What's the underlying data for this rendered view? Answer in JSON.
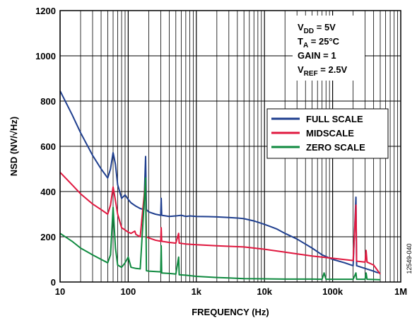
{
  "chart_data": {
    "type": "line",
    "title": "",
    "xlabel": "FREQUENCY (Hz)",
    "ylabel": "NSD (NV/√Hz)",
    "x_scale": "log",
    "xlim": [
      10,
      1000000
    ],
    "ylim": [
      0,
      1200
    ],
    "x_ticks": [
      10,
      100,
      1000,
      10000,
      100000,
      1000000
    ],
    "x_tick_labels": [
      "10",
      "100",
      "1k",
      "10k",
      "100k",
      "1M"
    ],
    "y_ticks": [
      0,
      200,
      400,
      600,
      800,
      1000,
      1200
    ],
    "y_tick_labels": [
      "0",
      "200",
      "400",
      "600",
      "800",
      "1000",
      "1200"
    ],
    "grid": true,
    "legend_position": "right-middle",
    "conditions": [
      {
        "pre": "V",
        "sub": "DD",
        "post": " = 5V"
      },
      {
        "pre": "T",
        "sub": "A",
        "post": " = 25°C"
      },
      {
        "pre": "GAIN = 1",
        "sub": "",
        "post": ""
      },
      {
        "pre": "V",
        "sub": "REF",
        "post": " = 2.5V"
      }
    ],
    "figure_code": "12549-040",
    "series": [
      {
        "name": "FULL SCALE",
        "color": "#1f3f8f",
        "points": [
          [
            10,
            845
          ],
          [
            15,
            740
          ],
          [
            20,
            660
          ],
          [
            30,
            560
          ],
          [
            40,
            500
          ],
          [
            50,
            460
          ],
          [
            55,
            500
          ],
          [
            60,
            572
          ],
          [
            65,
            520
          ],
          [
            70,
            430
          ],
          [
            80,
            370
          ],
          [
            90,
            385
          ],
          [
            100,
            365
          ],
          [
            110,
            350
          ],
          [
            130,
            335
          ],
          [
            150,
            325
          ],
          [
            170,
            320
          ],
          [
            180,
            555
          ],
          [
            185,
            320
          ],
          [
            200,
            310
          ],
          [
            250,
            300
          ],
          [
            300,
            295
          ],
          [
            305,
            370
          ],
          [
            310,
            295
          ],
          [
            400,
            290
          ],
          [
            500,
            292
          ],
          [
            600,
            295
          ],
          [
            700,
            290
          ],
          [
            800,
            292
          ],
          [
            1000,
            290
          ],
          [
            1500,
            289
          ],
          [
            2000,
            288
          ],
          [
            3000,
            285
          ],
          [
            4000,
            283
          ],
          [
            5000,
            280
          ],
          [
            7000,
            270
          ],
          [
            10000,
            255
          ],
          [
            15000,
            235
          ],
          [
            20000,
            215
          ],
          [
            30000,
            190
          ],
          [
            50000,
            150
          ],
          [
            70000,
            120
          ],
          [
            100000,
            100
          ],
          [
            150000,
            85
          ],
          [
            200000,
            72
          ],
          [
            220000,
            375
          ],
          [
            225000,
            72
          ],
          [
            300000,
            60
          ],
          [
            400000,
            48
          ],
          [
            450000,
            42
          ],
          [
            500000,
            40
          ]
        ]
      },
      {
        "name": "MIDSCALE",
        "color": "#e0183f",
        "points": [
          [
            10,
            485
          ],
          [
            15,
            430
          ],
          [
            20,
            390
          ],
          [
            30,
            345
          ],
          [
            40,
            320
          ],
          [
            50,
            300
          ],
          [
            55,
            340
          ],
          [
            60,
            420
          ],
          [
            65,
            360
          ],
          [
            70,
            300
          ],
          [
            80,
            240
          ],
          [
            90,
            230
          ],
          [
            100,
            220
          ],
          [
            110,
            215
          ],
          [
            125,
            225
          ],
          [
            130,
            210
          ],
          [
            150,
            200
          ],
          [
            180,
            450
          ],
          [
            185,
            200
          ],
          [
            200,
            195
          ],
          [
            250,
            185
          ],
          [
            300,
            180
          ],
          [
            305,
            240
          ],
          [
            310,
            180
          ],
          [
            400,
            175
          ],
          [
            500,
            172
          ],
          [
            550,
            215
          ],
          [
            560,
            172
          ],
          [
            700,
            168
          ],
          [
            1000,
            165
          ],
          [
            2000,
            160
          ],
          [
            3000,
            158
          ],
          [
            5000,
            155
          ],
          [
            10000,
            145
          ],
          [
            20000,
            132
          ],
          [
            50000,
            115
          ],
          [
            100000,
            105
          ],
          [
            200000,
            95
          ],
          [
            220000,
            340
          ],
          [
            225000,
            92
          ],
          [
            300000,
            88
          ],
          [
            310000,
            140
          ],
          [
            320000,
            88
          ],
          [
            400000,
            75
          ],
          [
            500000,
            35
          ]
        ]
      },
      {
        "name": "ZERO SCALE",
        "color": "#0f8a3f",
        "points": [
          [
            10,
            215
          ],
          [
            15,
            180
          ],
          [
            20,
            150
          ],
          [
            30,
            120
          ],
          [
            40,
            100
          ],
          [
            50,
            85
          ],
          [
            55,
            120
          ],
          [
            60,
            330
          ],
          [
            65,
            150
          ],
          [
            70,
            75
          ],
          [
            80,
            65
          ],
          [
            90,
            85
          ],
          [
            100,
            110
          ],
          [
            110,
            65
          ],
          [
            130,
            60
          ],
          [
            150,
            58
          ],
          [
            180,
            460
          ],
          [
            185,
            50
          ],
          [
            200,
            48
          ],
          [
            300,
            45
          ],
          [
            305,
            160
          ],
          [
            310,
            40
          ],
          [
            400,
            38
          ],
          [
            500,
            35
          ],
          [
            550,
            110
          ],
          [
            560,
            32
          ],
          [
            700,
            30
          ],
          [
            1000,
            25
          ],
          [
            2000,
            20
          ],
          [
            3000,
            18
          ],
          [
            5000,
            15
          ],
          [
            10000,
            14
          ],
          [
            20000,
            13
          ],
          [
            50000,
            13
          ],
          [
            70000,
            12
          ],
          [
            75000,
            40
          ],
          [
            80000,
            12
          ],
          [
            100000,
            12
          ],
          [
            200000,
            12
          ],
          [
            220000,
            40
          ],
          [
            225000,
            12
          ],
          [
            300000,
            12
          ],
          [
            310000,
            40
          ],
          [
            320000,
            12
          ],
          [
            500000,
            10
          ]
        ]
      }
    ]
  }
}
